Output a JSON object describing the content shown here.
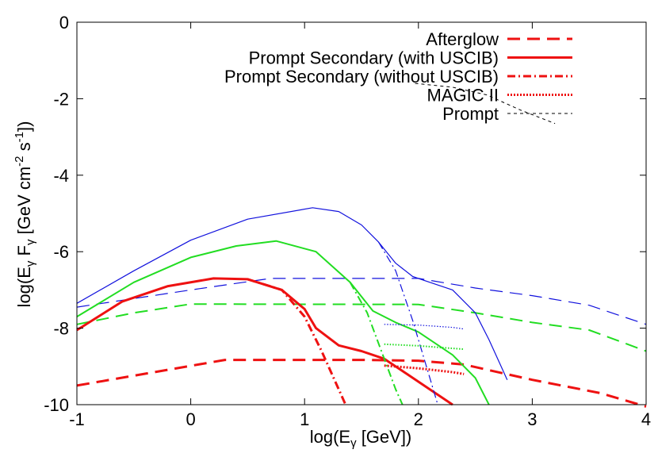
{
  "chart_data": {
    "type": "line",
    "title": "",
    "xlabel": "log(E",
    "xlabel_sub": "γ",
    "xlabel_tail": " [GeV])",
    "ylabel": "log(E",
    "ylabel_sub1": "γ",
    "ylabel_mid": " F",
    "ylabel_sub2": "γ",
    "ylabel_mid2": " [GeV cm",
    "ylabel_sup1": "-2",
    "ylabel_mid3": " s",
    "ylabel_sup2": "-1",
    "ylabel_tail": "])",
    "xlim": [
      -1,
      4
    ],
    "ylim": [
      -10,
      0
    ],
    "xticks": [
      -1,
      0,
      1,
      2,
      3,
      4
    ],
    "xtick_labels": [
      "-1",
      "0",
      "1",
      "2",
      "3",
      "4"
    ],
    "yticks": [
      0,
      -2,
      -4,
      -6,
      -8,
      -10
    ],
    "ytick_labels": [
      "0",
      "-2",
      "-4",
      "-6",
      "-8",
      "-10"
    ],
    "grid": false,
    "legend_position": "top-right",
    "legend": [
      {
        "label": "Afterglow",
        "style": "long-dash",
        "color": "#ee1111"
      },
      {
        "label": "Prompt Secondary (with USCIB)",
        "style": "solid",
        "color": "#ee1111"
      },
      {
        "label": "Prompt Secondary (without USCIB)",
        "style": "dash-dot",
        "color": "#ee1111"
      },
      {
        "label": "MAGIC II",
        "style": "dotted",
        "color": "#ee1111"
      },
      {
        "label": "Prompt",
        "style": "short-dash",
        "color": "#000000"
      }
    ],
    "colors": {
      "red": "#ee1111",
      "green": "#22dd22",
      "blue": "#1111dd",
      "black": "#000000"
    },
    "series": [
      {
        "name": "Afterglow (red)",
        "color": "#ee1111",
        "style": "long-dash",
        "width": 3,
        "x": [
          -1,
          0.3,
          1.5,
          2.0,
          2.4,
          3.0,
          3.6,
          4.0
        ],
        "y": [
          -9.5,
          -8.83,
          -8.83,
          -8.85,
          -8.95,
          -9.35,
          -9.7,
          -10.05
        ]
      },
      {
        "name": "Afterglow (green)",
        "color": "#22dd22",
        "style": "long-dash",
        "width": 2,
        "x": [
          -1,
          -0.5,
          0,
          2.0,
          2.5,
          3.0,
          3.5,
          4.0
        ],
        "y": [
          -7.9,
          -7.6,
          -7.37,
          -7.38,
          -7.6,
          -7.85,
          -8.05,
          -8.6
        ]
      },
      {
        "name": "Afterglow (blue)",
        "color": "#1111dd",
        "style": "long-dash",
        "width": 1.2,
        "x": [
          -1,
          0,
          0.7,
          2.0,
          2.5,
          3.0,
          3.5,
          4.0
        ],
        "y": [
          -7.45,
          -7.0,
          -6.7,
          -6.7,
          -6.95,
          -7.15,
          -7.4,
          -7.9
        ]
      },
      {
        "name": "Prompt Secondary with USCIB (red)",
        "color": "#ee1111",
        "style": "solid",
        "width": 3,
        "x": [
          -1,
          -0.6,
          -0.2,
          0.2,
          0.5,
          0.8,
          1.0,
          1.1,
          1.3,
          1.5,
          1.7,
          1.9,
          2.1,
          2.3
        ],
        "y": [
          -8.05,
          -7.3,
          -6.9,
          -6.7,
          -6.72,
          -7.0,
          -7.5,
          -8.0,
          -8.45,
          -8.6,
          -8.8,
          -9.2,
          -9.6,
          -10.0
        ]
      },
      {
        "name": "Prompt Secondary with USCIB (green)",
        "color": "#22dd22",
        "style": "solid",
        "width": 2,
        "x": [
          -1,
          -0.5,
          0,
          0.4,
          0.75,
          1.1,
          1.4,
          1.6,
          1.8,
          2.0,
          2.3,
          2.5,
          2.62
        ],
        "y": [
          -7.7,
          -6.8,
          -6.15,
          -5.85,
          -5.72,
          -6.0,
          -6.8,
          -7.55,
          -7.85,
          -8.1,
          -8.7,
          -9.3,
          -10.0
        ]
      },
      {
        "name": "Prompt Secondary with USCIB (blue)",
        "color": "#1111dd",
        "style": "solid",
        "width": 1.2,
        "x": [
          -1,
          -0.5,
          0,
          0.5,
          1.07,
          1.3,
          1.5,
          1.65,
          1.8,
          1.95,
          2.1,
          2.3,
          2.5,
          2.62,
          2.78
        ],
        "y": [
          -7.35,
          -6.5,
          -5.7,
          -5.15,
          -4.85,
          -4.95,
          -5.3,
          -5.75,
          -6.3,
          -6.65,
          -6.8,
          -7.0,
          -7.6,
          -8.3,
          -9.35
        ]
      },
      {
        "name": "Prompt Secondary without USCIB (red)",
        "color": "#ee1111",
        "style": "dash-dot",
        "width": 3,
        "x": [
          0.5,
          0.8,
          1.0,
          1.15,
          1.3,
          1.36
        ],
        "y": [
          -6.72,
          -7.0,
          -7.7,
          -8.6,
          -9.6,
          -10.0
        ]
      },
      {
        "name": "Prompt Secondary without USCIB (green)",
        "color": "#22dd22",
        "style": "dash-dot",
        "width": 2,
        "x": [
          1.4,
          1.55,
          1.7,
          1.8,
          1.86
        ],
        "y": [
          -6.8,
          -7.6,
          -8.8,
          -9.6,
          -10.0
        ]
      },
      {
        "name": "Prompt Secondary without USCIB (blue)",
        "color": "#1111dd",
        "style": "dash-dot",
        "width": 1.2,
        "x": [
          1.65,
          1.8,
          1.95,
          2.1,
          2.17
        ],
        "y": [
          -5.75,
          -6.5,
          -7.8,
          -9.3,
          -10.0
        ]
      },
      {
        "name": "MAGIC II (red)",
        "color": "#ee1111",
        "style": "dotted",
        "width": 3,
        "x": [
          1.7,
          2.0,
          2.3,
          2.4
        ],
        "y": [
          -8.98,
          -9.05,
          -9.15,
          -9.2
        ]
      },
      {
        "name": "MAGIC II (green)",
        "color": "#22dd22",
        "style": "dotted",
        "width": 2,
        "x": [
          1.7,
          2.0,
          2.3,
          2.4
        ],
        "y": [
          -8.42,
          -8.46,
          -8.53,
          -8.55
        ]
      },
      {
        "name": "MAGIC II (blue)",
        "color": "#1111dd",
        "style": "dotted",
        "width": 1.2,
        "x": [
          1.7,
          2.0,
          2.3,
          2.4
        ],
        "y": [
          -7.9,
          -7.92,
          -7.98,
          -8.02
        ]
      },
      {
        "name": "Prompt",
        "color": "#000000",
        "style": "short-dash",
        "width": 1,
        "x": [
          1.97,
          2.3,
          2.6,
          2.9,
          3.2
        ],
        "y": [
          -1.6,
          -1.7,
          -1.9,
          -2.3,
          -2.65
        ]
      }
    ]
  }
}
